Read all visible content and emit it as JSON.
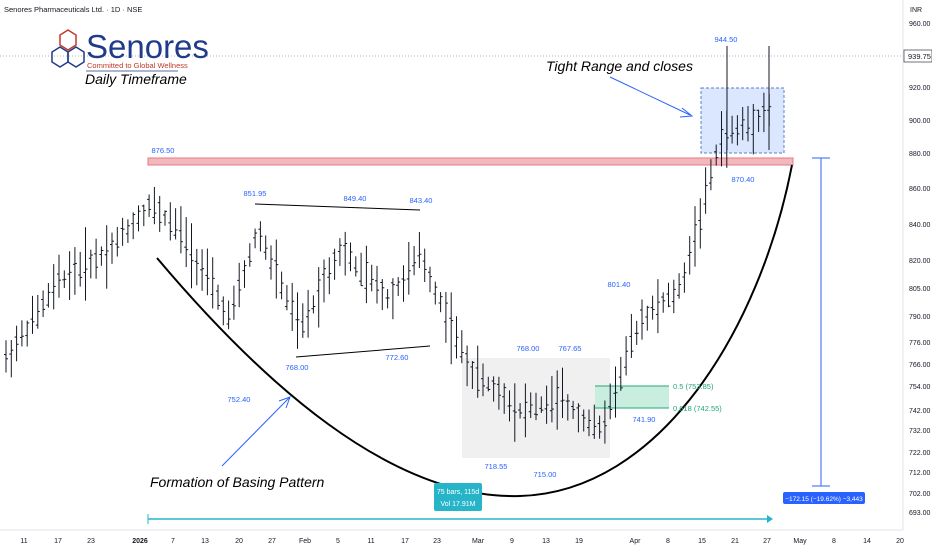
{
  "header": {
    "symbol_line": "Senores Pharmaceuticals Ltd. · 1D · NSE",
    "currency": "INR"
  },
  "logo": {
    "name": "Senores",
    "tagline": "Committed to Global Wellness",
    "timeframe": "Daily Timeframe"
  },
  "colors": {
    "price_label": "#2962ff",
    "resistance_zone": "#f3b8bd",
    "fib_zone": "#c9eee0",
    "tight_range_box": "#dbe6ff",
    "cup_curve": "#000000",
    "measure": "#2962ff",
    "bars_badge": "#26b5c8"
  },
  "chart_data": {
    "type": "ohlc",
    "title": "Senores Pharmaceuticals Ltd. · 1D · NSE",
    "ylabel": "INR",
    "y_ticks": [
      960,
      940,
      920,
      900,
      880,
      860,
      840,
      820,
      805,
      790,
      776,
      766,
      754,
      742,
      732,
      722,
      712,
      702,
      693
    ],
    "x_ticks": [
      "11",
      "17",
      "23",
      "2026",
      "7",
      "13",
      "20",
      "27",
      "Feb",
      "5",
      "11",
      "17",
      "23",
      "Mar",
      "9",
      "13",
      "19",
      "Apr",
      "8",
      "15",
      "21",
      "27",
      "May",
      "8",
      "14",
      "20"
    ],
    "current_price": "939.75",
    "price_points": [
      {
        "label": "876.50",
        "value": 876.5
      },
      {
        "label": "851.95",
        "value": 851.95
      },
      {
        "label": "849.40",
        "value": 849.4
      },
      {
        "label": "843.40",
        "value": 843.4
      },
      {
        "label": "768.00",
        "value": 768.0
      },
      {
        "label": "772.60",
        "value": 772.6
      },
      {
        "label": "752.40",
        "value": 752.4
      },
      {
        "label": "768.00",
        "value": 768.0
      },
      {
        "label": "767.65",
        "value": 767.65
      },
      {
        "label": "718.55",
        "value": 718.55
      },
      {
        "label": "715.00",
        "value": 715.0
      },
      {
        "label": "801.40",
        "value": 801.4
      },
      {
        "label": "741.90",
        "value": 741.9
      },
      {
        "label": "870.40",
        "value": 870.4
      },
      {
        "label": "944.50",
        "value": 944.5
      }
    ],
    "fib_levels": [
      {
        "label": "0.5 (753.85)",
        "value": 753.85
      },
      {
        "label": "0.618 (742.55)",
        "value": 742.55
      }
    ],
    "measure_label": "−172.15 (−19.62%) −3,443",
    "bars_label": "75 bars, 115d",
    "vol_label": "Vol 17.91M",
    "annotations": {
      "tight_range": "Tight Range and closes",
      "basing": "Formation of Basing Pattern"
    },
    "resistance_zone": [
      873,
      879
    ]
  }
}
